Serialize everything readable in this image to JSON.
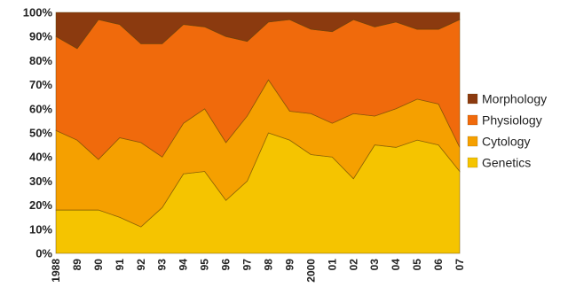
{
  "chart_data": {
    "type": "area",
    "stacking": "percent",
    "title": "",
    "xlabel": "",
    "ylabel": "",
    "ylim": [
      0,
      100
    ],
    "y_tick_labels": [
      "0%",
      "10%",
      "20%",
      "30%",
      "40%",
      "50%",
      "60%",
      "70%",
      "80%",
      "90%",
      "100%"
    ],
    "x": [
      "1988",
      "89",
      "90",
      "91",
      "92",
      "93",
      "94",
      "95",
      "96",
      "97",
      "98",
      "99",
      "2000",
      "01",
      "02",
      "03",
      "04",
      "05",
      "06",
      "07"
    ],
    "grid": false,
    "legend_position": "right",
    "series": [
      {
        "name": "Genetics",
        "color": "#f5c400",
        "values": [
          18,
          18,
          18,
          15,
          11,
          19,
          33,
          34,
          22,
          30,
          50,
          47,
          41,
          40,
          31,
          45,
          44,
          47,
          45,
          34
        ]
      },
      {
        "name": "Cytology",
        "color": "#f5a000",
        "values": [
          33,
          29,
          21,
          33,
          35,
          21,
          21,
          26,
          24,
          27,
          22,
          12,
          17,
          14,
          27,
          12,
          16,
          17,
          17,
          10
        ]
      },
      {
        "name": "Physiology",
        "color": "#f06a0c",
        "values": [
          39,
          38,
          58,
          47,
          41,
          47,
          41,
          34,
          44,
          31,
          24,
          38,
          35,
          38,
          39,
          37,
          36,
          29,
          31,
          53
        ]
      },
      {
        "name": "Morphology",
        "color": "#8b3a0f",
        "values": [
          10,
          15,
          3,
          5,
          13,
          13,
          5,
          6,
          10,
          12,
          4,
          3,
          7,
          8,
          3,
          6,
          4,
          7,
          7,
          3
        ]
      }
    ]
  }
}
